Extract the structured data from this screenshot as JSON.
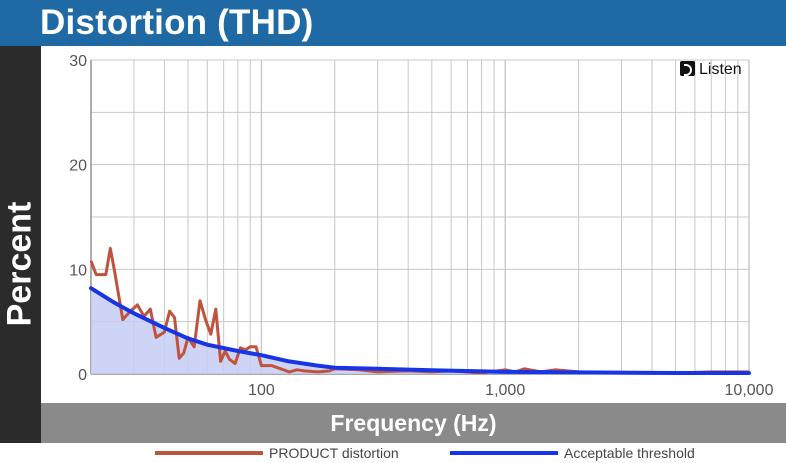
{
  "header": {
    "title": "Distortion (THD)"
  },
  "logo": {
    "text": "Listen",
    "icon": "ear-icon"
  },
  "colors": {
    "header_bg": "#1f6aa5",
    "side_bg": "#2b2b2b",
    "xbar_bg": "#8a8a8a",
    "product": "#c0533e",
    "threshold": "#1734e6",
    "threshold_fill": "#c5ccf5",
    "grid": "#c8c8c8"
  },
  "chart_data": {
    "type": "line",
    "xscale": "log",
    "xlim": [
      20,
      10000
    ],
    "ylim": [
      0,
      30
    ],
    "ylabel": "Percent",
    "xlabel": "Frequency (Hz)",
    "yticks": [
      0,
      10,
      20,
      30
    ],
    "xticks": [
      {
        "value": 100,
        "label": "100"
      },
      {
        "value": 1000,
        "label": "1,000"
      },
      {
        "value": 10000,
        "label": "10,000"
      }
    ],
    "grid": true,
    "legend_position": "bottom",
    "series": [
      {
        "name": "PRODUCT distortion",
        "color": "#c0533e",
        "x": [
          20,
          21,
          23,
          24,
          25,
          27,
          29,
          31,
          33,
          35,
          37,
          40,
          42,
          44,
          46,
          48,
          50,
          53,
          56,
          59,
          62,
          65,
          68,
          71,
          74,
          78,
          82,
          86,
          90,
          95,
          100,
          110,
          120,
          130,
          140,
          150,
          170,
          190,
          200,
          250,
          300,
          400,
          500,
          600,
          800,
          1000,
          1100,
          1200,
          1400,
          1600,
          2000,
          3000,
          5000,
          7000,
          10000
        ],
        "y": [
          10.8,
          9.5,
          9.5,
          12.0,
          9.8,
          5.2,
          6.0,
          6.6,
          5.5,
          6.2,
          3.5,
          4.0,
          6.0,
          5.4,
          1.5,
          2.0,
          3.5,
          2.6,
          7.0,
          5.2,
          3.8,
          6.2,
          1.2,
          2.2,
          1.4,
          1.0,
          2.5,
          2.3,
          2.6,
          2.6,
          0.8,
          0.8,
          0.5,
          0.2,
          0.4,
          0.3,
          0.2,
          0.3,
          0.5,
          0.4,
          0.2,
          0.3,
          0.2,
          0.3,
          0.1,
          0.4,
          0.2,
          0.5,
          0.2,
          0.4,
          0.2,
          0.1,
          0.1,
          0.2,
          0.2
        ]
      },
      {
        "name": "Acceptable threshold",
        "color": "#1734e6",
        "x": [
          20,
          25,
          30,
          40,
          50,
          60,
          80,
          100,
          130,
          170,
          200,
          300,
          500,
          1000,
          2000,
          5000,
          10000
        ],
        "y": [
          8.2,
          6.8,
          5.8,
          4.4,
          3.4,
          2.8,
          2.2,
          1.8,
          1.2,
          0.8,
          0.6,
          0.5,
          0.35,
          0.2,
          0.15,
          0.1,
          0.1
        ]
      }
    ]
  }
}
